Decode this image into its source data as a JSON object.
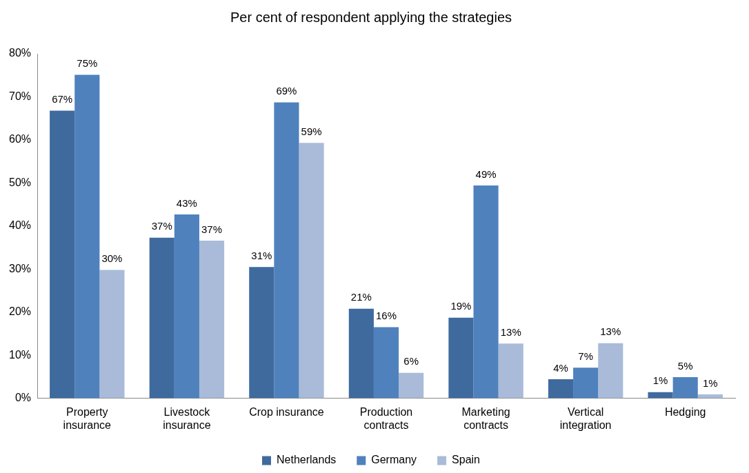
{
  "chart_data": {
    "type": "bar",
    "title": "Per cent of respondent applying the strategies",
    "categories": [
      "Property insurance",
      "Livestock insurance",
      "Crop insurance",
      "Production contracts",
      "Marketing contracts",
      "Vertical integration",
      "Hedging"
    ],
    "series": [
      {
        "name": "Netherlands",
        "color": "#3f6a9e",
        "values": [
          66.8,
          37.3,
          30.5,
          20.8,
          18.7,
          4.4,
          1.4
        ],
        "value_labels": [
          "67%",
          "37%",
          "31%",
          "21%",
          "19%",
          "4%",
          "1%"
        ]
      },
      {
        "name": "Germany",
        "color": "#4f81bd",
        "values": [
          75.1,
          42.7,
          68.7,
          16.5,
          49.4,
          7.1,
          4.9
        ],
        "value_labels": [
          "75%",
          "43%",
          "69%",
          "16%",
          "49%",
          "7%",
          "5%"
        ]
      },
      {
        "name": "Spain",
        "color": "#a9bbd9",
        "values": [
          29.8,
          36.6,
          59.3,
          5.9,
          12.7,
          12.8,
          0.9
        ],
        "value_labels": [
          "30%",
          "37%",
          "59%",
          "6%",
          "13%",
          "13%",
          "1%"
        ]
      }
    ],
    "ylim": [
      0,
      80
    ],
    "yticks": [
      {
        "value": 0,
        "label": "0%"
      },
      {
        "value": 10,
        "label": "10%"
      },
      {
        "value": 20,
        "label": "20%"
      },
      {
        "value": 30,
        "label": "30%"
      },
      {
        "value": 40,
        "label": "40%"
      },
      {
        "value": 50,
        "label": "50%"
      },
      {
        "value": 60,
        "label": "60%"
      },
      {
        "value": 70,
        "label": "70%"
      },
      {
        "value": 80,
        "label": "80%"
      }
    ],
    "grid": false,
    "legend": "bottom"
  }
}
